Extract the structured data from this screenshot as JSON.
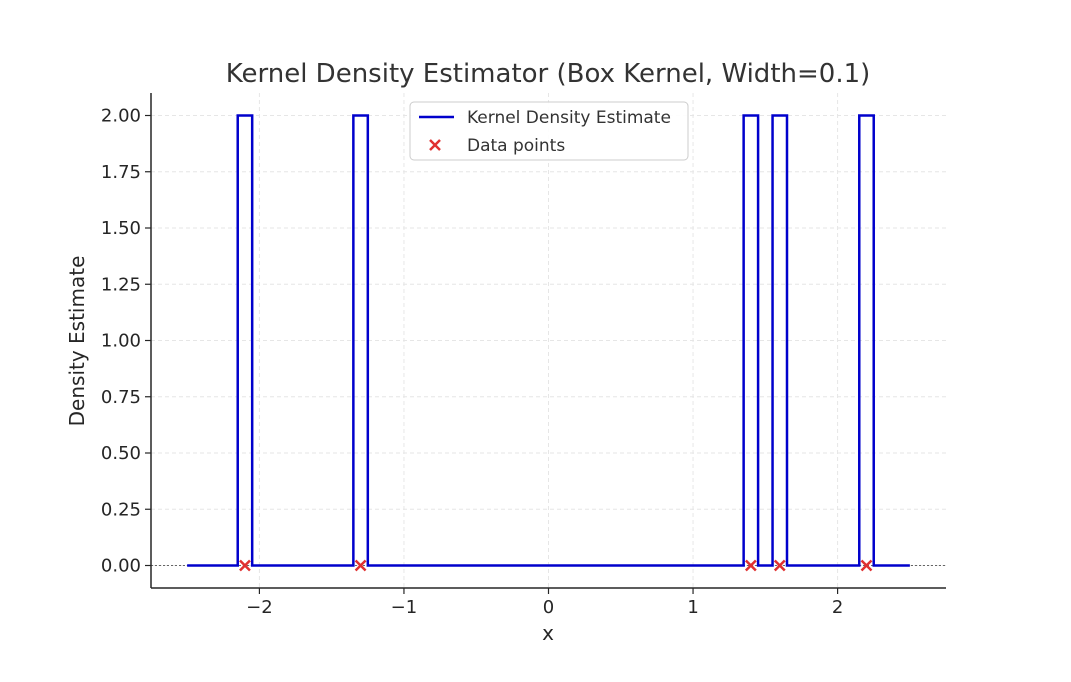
{
  "chart_data": {
    "type": "line",
    "title": "Kernel Density Estimator (Box Kernel, Width=0.1)",
    "xlabel": "x",
    "ylabel": "Density Estimate",
    "xlim": [
      -2.75,
      2.75
    ],
    "ylim": [
      -0.1,
      2.1
    ],
    "x_ticks": [
      -2,
      -1,
      0,
      1,
      2
    ],
    "x_tick_labels": [
      "−2",
      "−1",
      "0",
      "1",
      "2"
    ],
    "y_ticks": [
      0,
      0.25,
      0.5,
      0.75,
      1.0,
      1.25,
      1.5,
      1.75,
      2.0
    ],
    "y_tick_labels": [
      "0.00",
      "0.25",
      "0.50",
      "0.75",
      "1.00",
      "1.25",
      "1.50",
      "1.75",
      "2.00"
    ],
    "grid": true,
    "legend_position": "upper-center",
    "kernel_width": 0.1,
    "density_range": [
      -2.5,
      2.5
    ],
    "series": [
      {
        "name": "Kernel Density Estimate",
        "kind": "line",
        "color": "#0000cc",
        "peaks": [
          {
            "center": -2.1,
            "height": 2.0
          },
          {
            "center": -1.3,
            "height": 2.0
          },
          {
            "center": 1.4,
            "height": 2.0
          },
          {
            "center": 1.6,
            "height": 2.0
          },
          {
            "center": 2.2,
            "height": 2.0
          }
        ]
      },
      {
        "name": "Data points",
        "kind": "scatter",
        "marker": "x",
        "color": "#e03030",
        "x": [
          -2.1,
          -1.3,
          1.4,
          1.6,
          2.2
        ],
        "y": [
          0,
          0,
          0,
          0,
          0
        ]
      }
    ]
  }
}
